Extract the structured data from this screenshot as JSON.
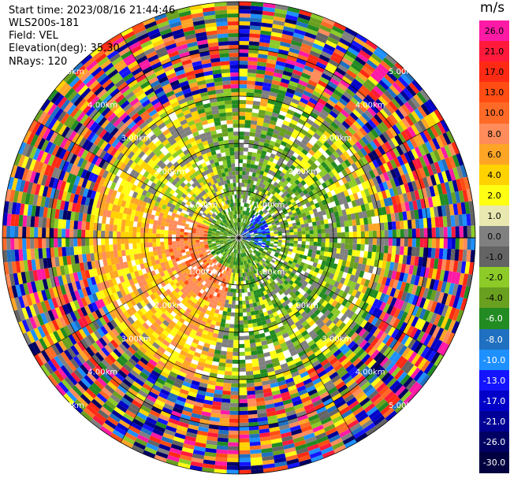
{
  "header": {
    "start_time": "Start time: 2023/08/16 21:44:46",
    "instrument": "WLS200s-181",
    "field": "Field: VEL",
    "elevation": "Elevation(deg): 35.30",
    "nrays": "NRays: 120"
  },
  "colorbar": {
    "unit": "m/s",
    "ticks": [
      "26.0",
      "21.0",
      "17.0",
      "13.0",
      "10.0",
      "8.0",
      "6.0",
      "4.0",
      "2.0",
      "1.0",
      "0.0",
      "-1.0",
      "-2.0",
      "-4.0",
      "-6.0",
      "-8.0",
      "-10.0",
      "-13.0",
      "-17.0",
      "-21.0",
      "-26.0",
      "-30.0"
    ],
    "colors": [
      "#ff1aa6",
      "#ff1a3c",
      "#ff2a14",
      "#ff4d14",
      "#ff6a26",
      "#ff8c5a",
      "#ffa526",
      "#ffd200",
      "#ffff14",
      "#e8e8b0",
      "#808080",
      "#646464",
      "#8ccb28",
      "#6aa020",
      "#228b22",
      "#1f70c0",
      "#1e90ff",
      "#1414ff",
      "#0000c8",
      "#000096",
      "#000064",
      "#000040"
    ]
  },
  "ring_labels": [
    "1.00km",
    "2.00km",
    "3.00km",
    "4.00km",
    "5.00km"
  ]
}
